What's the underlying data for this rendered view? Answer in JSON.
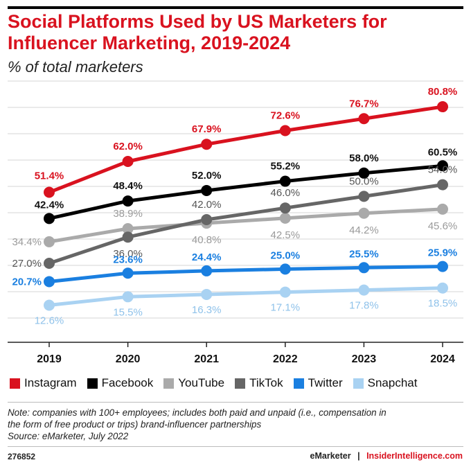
{
  "header": {
    "title": "Social Platforms Used by US Marketers for Influencer Marketing, 2019-2024",
    "subtitle": "% of total marketers"
  },
  "chart_data": {
    "type": "line",
    "title": "Social Platforms Used by US Marketers for Influencer Marketing, 2019-2024",
    "subtitle": "% of total marketers",
    "categories": [
      "2019",
      "2020",
      "2021",
      "2022",
      "2023",
      "2024"
    ],
    "ylim": [
      0,
      100
    ],
    "grid": true,
    "legend_position": "bottom",
    "series": [
      {
        "name": "Instagram",
        "color": "#d9121f",
        "values": [
          51.4,
          62.0,
          67.9,
          72.6,
          76.7,
          80.8
        ],
        "labels": [
          "51.4%",
          "62.0%",
          "67.9%",
          "72.6%",
          "76.7%",
          "80.8%"
        ]
      },
      {
        "name": "Facebook",
        "color": "#000000",
        "values": [
          42.4,
          48.4,
          52.0,
          55.2,
          58.0,
          60.5
        ],
        "labels": [
          "42.4%",
          "48.4%",
          "52.0%",
          "55.2%",
          "58.0%",
          "60.5%"
        ]
      },
      {
        "name": "YouTube",
        "color": "#aaaaaa",
        "values": [
          34.4,
          38.9,
          40.8,
          42.5,
          44.2,
          45.6
        ],
        "labels": [
          "34.4%",
          "38.9%",
          "40.8%",
          "42.5%",
          "44.2%",
          "45.6%"
        ]
      },
      {
        "name": "TikTok",
        "color": "#666666",
        "values": [
          27.0,
          36.0,
          42.0,
          46.0,
          50.0,
          54.0
        ],
        "labels": [
          "27.0%",
          "36.0%",
          "42.0%",
          "46.0%",
          "50.0%",
          "54.0%"
        ]
      },
      {
        "name": "Twitter",
        "color": "#1a7fe0",
        "values": [
          20.7,
          23.6,
          24.4,
          25.0,
          25.5,
          25.9
        ],
        "labels": [
          "20.7%",
          "23.6%",
          "24.4%",
          "25.0%",
          "25.5%",
          "25.9%"
        ]
      },
      {
        "name": "Snapchat",
        "color": "#a9d2f2",
        "values": [
          12.6,
          15.5,
          16.3,
          17.1,
          17.8,
          18.5
        ],
        "labels": [
          "12.6%",
          "15.5%",
          "16.3%",
          "17.1%",
          "17.8%",
          "18.5%"
        ]
      }
    ]
  },
  "legend": {
    "items": [
      {
        "label": "Instagram",
        "color": "#d9121f"
      },
      {
        "label": "Facebook",
        "color": "#000000"
      },
      {
        "label": "YouTube",
        "color": "#aaaaaa"
      },
      {
        "label": "TikTok",
        "color": "#666666"
      },
      {
        "label": "Twitter",
        "color": "#1a7fe0"
      },
      {
        "label": "Snapchat",
        "color": "#a9d2f2"
      }
    ]
  },
  "note": {
    "line1": "Note: companies with 100+ employees; includes both paid and unpaid (i.e., compensation in",
    "line2": "the form of free product or trips) brand-influencer partnerships",
    "source": "Source: eMarketer, July 2022"
  },
  "footer": {
    "id": "276852",
    "brand1": "eMarketer",
    "separator": "|",
    "brand2": "InsiderIntelligence.com"
  }
}
